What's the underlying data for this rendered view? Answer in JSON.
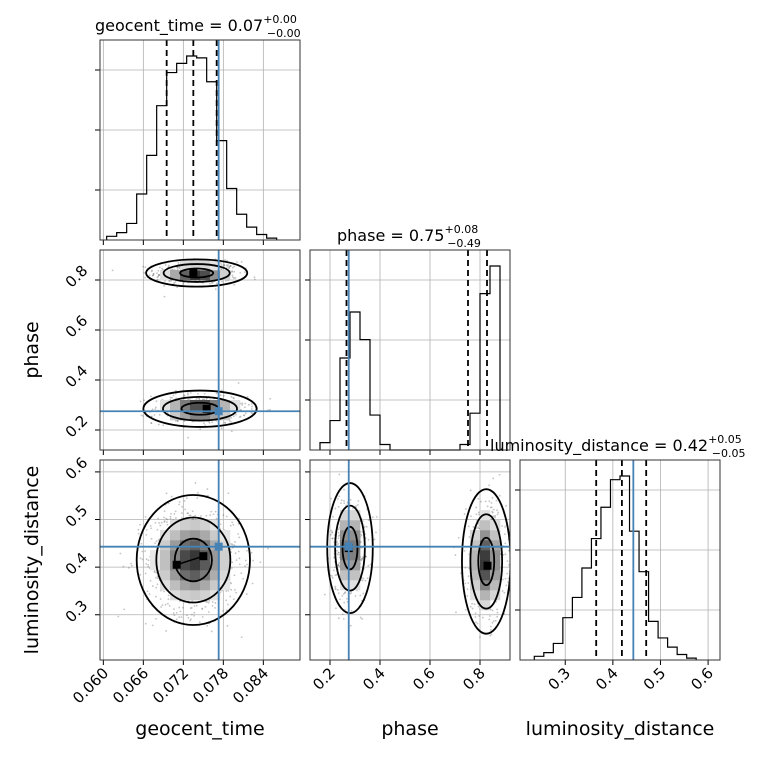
{
  "chart_data": {
    "type": "corner",
    "parameters": [
      "geocent_time",
      "phase",
      "luminosity_distance"
    ],
    "axis_labels": {
      "geocent_time": "geocent_time",
      "phase": "phase",
      "luminosity_distance": "luminosity_distance"
    },
    "ranges": {
      "geocent_time": [
        0.0595,
        0.0895
      ],
      "phase": [
        0.12,
        0.92
      ],
      "luminosity_distance": [
        0.205,
        0.625
      ]
    },
    "ticks": {
      "geocent_time": [
        "0.060",
        "0.066",
        "0.072",
        "0.078",
        "0.084"
      ],
      "phase": [
        "0.2",
        "0.4",
        "0.6",
        "0.8"
      ],
      "phase_y": [
        "0.2",
        "0.4",
        "0.6",
        "0.8"
      ],
      "luminosity_distance": [
        "0.3",
        "0.4",
        "0.5",
        "0.6"
      ],
      "luminosity_distance_y": [
        "0.3",
        "0.4",
        "0.5",
        "0.6"
      ]
    },
    "truths": {
      "geocent_time": 0.0773,
      "phase": 0.275,
      "luminosity_distance": 0.443
    },
    "titles": [
      {
        "param": "geocent_time",
        "label": "geocent_time",
        "median": "0.07",
        "plus": "+0.00",
        "minus": "−0.00"
      },
      {
        "param": "phase",
        "label": "phase",
        "median": "0.75",
        "plus": "+0.08",
        "minus": "−0.49"
      },
      {
        "param": "luminosity_distance",
        "label": "luminosity_distance",
        "median": "0.42",
        "plus": "+0.05",
        "minus": "−0.05"
      }
    ],
    "histograms": {
      "geocent_time": {
        "edges": [
          0.0605,
          0.062,
          0.0635,
          0.065,
          0.0665,
          0.068,
          0.0695,
          0.071,
          0.0725,
          0.074,
          0.0755,
          0.077,
          0.0785,
          0.08,
          0.0815,
          0.083,
          0.0845,
          0.086
        ],
        "counts": [
          2,
          4,
          9,
          25,
          46,
          73,
          91,
          96,
          100,
          99,
          86,
          54,
          28,
          14,
          7,
          3,
          1
        ],
        "quantiles": [
          0.0695,
          0.0735,
          0.077
        ]
      },
      "phase": {
        "edges": [
          0.16,
          0.2,
          0.24,
          0.28,
          0.32,
          0.36,
          0.4,
          0.44,
          0.48,
          0.52,
          0.56,
          0.6,
          0.64,
          0.68,
          0.72,
          0.76,
          0.8,
          0.84,
          0.88
        ],
        "counts": [
          4,
          16,
          50,
          75,
          60,
          19,
          3,
          0,
          0,
          0,
          0,
          0,
          0,
          0,
          3,
          20,
          85,
          100
        ],
        "quantiles": [
          0.266,
          0.752,
          0.828
        ]
      },
      "luminosity_distance": {
        "edges": [
          0.235,
          0.255,
          0.275,
          0.295,
          0.315,
          0.335,
          0.355,
          0.375,
          0.395,
          0.415,
          0.435,
          0.455,
          0.475,
          0.495,
          0.515,
          0.535,
          0.555,
          0.575
        ],
        "counts": [
          2,
          4,
          9,
          23,
          34,
          50,
          66,
          83,
          98,
          100,
          70,
          48,
          21,
          12,
          7,
          3,
          1
        ],
        "quantiles": [
          0.365,
          0.419,
          0.47
        ]
      }
    },
    "pairs": [
      {
        "x": "geocent_time",
        "y": "phase",
        "modes": [
          {
            "cx": 0.074,
            "cy": 0.828,
            "sx": 0.0025,
            "sy": 0.018,
            "weight": 0.5
          },
          {
            "cx": 0.0745,
            "cy": 0.285,
            "sx": 0.0028,
            "sy": 0.024,
            "weight": 0.5
          }
        ],
        "peaks": [
          [
            0.0735,
            0.83
          ],
          [
            0.0755,
            0.285
          ]
        ]
      },
      {
        "x": "geocent_time",
        "y": "luminosity_distance",
        "modes": [
          {
            "cx": 0.0735,
            "cy": 0.415,
            "sx": 0.0028,
            "sy": 0.045,
            "weight": 1.0
          }
        ],
        "peaks": [
          [
            0.071,
            0.405
          ],
          [
            0.075,
            0.423
          ]
        ]
      },
      {
        "x": "phase",
        "y": "luminosity_distance",
        "modes": [
          {
            "cx": 0.28,
            "cy": 0.44,
            "sx": 0.03,
            "sy": 0.045,
            "weight": 0.45
          },
          {
            "cx": 0.825,
            "cy": 0.412,
            "sx": 0.032,
            "sy": 0.05,
            "weight": 0.55
          }
        ],
        "peaks": [
          [
            0.275,
            0.44
          ],
          [
            0.83,
            0.403
          ]
        ]
      }
    ],
    "contour_levels": [
      0.39,
      0.86,
      0.99
    ],
    "colors": {
      "truth": "#4682b4",
      "density": "#000000",
      "points": "#555555",
      "grid": "#b0b0b0"
    }
  }
}
